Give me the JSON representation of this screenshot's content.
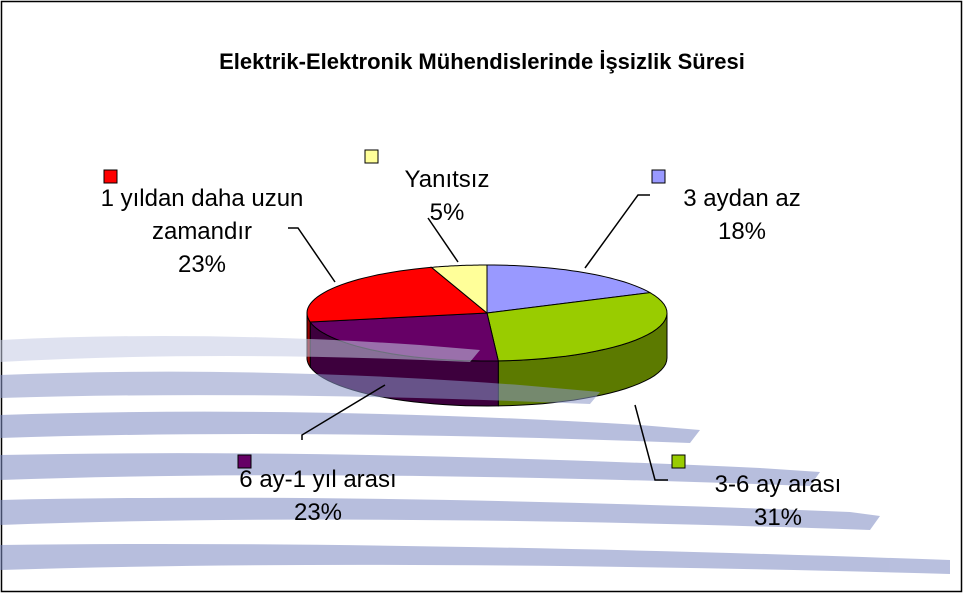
{
  "chart_data": {
    "type": "pie",
    "title": "Elektrik-Elektronik Mühendislerinde İşsizlik Süresi",
    "categories": [
      "3 aydan az",
      "3-6 ay arası",
      "6 ay-1 yıl arası",
      "1 yıldan daha uzun zamandır",
      "Yanıtsız"
    ],
    "values": [
      18,
      31,
      23,
      23,
      5
    ],
    "value_labels": [
      "18%",
      "31%",
      "23%",
      "23%",
      "5%"
    ],
    "colors": [
      "#9999ff",
      "#99cc00",
      "#660066",
      "#ff0000",
      "#ffff99"
    ]
  }
}
